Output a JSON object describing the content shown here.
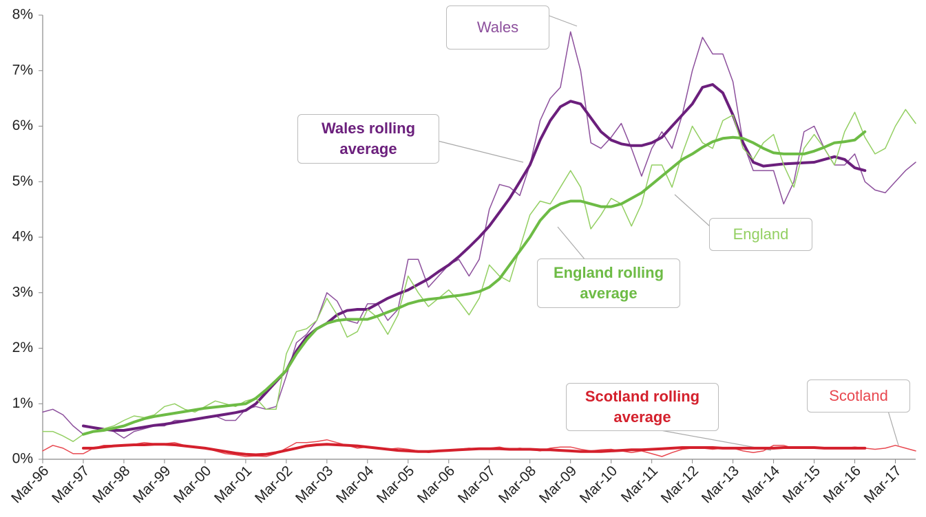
{
  "chart_data": {
    "type": "line",
    "categories": [
      "Mar-96",
      null,
      null,
      null,
      "Mar-97",
      null,
      null,
      null,
      "Mar-98",
      null,
      null,
      null,
      "Mar-99",
      null,
      null,
      null,
      "Mar-00",
      null,
      null,
      null,
      "Mar-01",
      null,
      null,
      null,
      "Mar-02",
      null,
      null,
      null,
      "Mar-03",
      null,
      null,
      null,
      "Mar-04",
      null,
      null,
      null,
      "Mar-05",
      null,
      null,
      null,
      "Mar-06",
      null,
      null,
      null,
      "Mar-07",
      null,
      null,
      null,
      "Mar-08",
      null,
      null,
      null,
      "Mar-09",
      null,
      null,
      null,
      "Mar-10",
      null,
      null,
      null,
      "Mar-11",
      null,
      null,
      null,
      "Mar-12",
      null,
      null,
      null,
      "Mar-13",
      null,
      null,
      null,
      "Mar-14",
      null,
      null,
      null,
      "Mar-15",
      null,
      null,
      null,
      "Mar-16",
      null,
      null,
      null,
      "Mar-17",
      null,
      null
    ],
    "ylim": [
      0,
      8
    ],
    "yticks": [
      {
        "value": 0,
        "label": "0%"
      },
      {
        "value": 1,
        "label": "1%"
      },
      {
        "value": 2,
        "label": "2%"
      },
      {
        "value": 3,
        "label": "3%"
      },
      {
        "value": 4,
        "label": "4%"
      },
      {
        "value": 5,
        "label": "5%"
      },
      {
        "value": 6,
        "label": "6%"
      },
      {
        "value": 7,
        "label": "7%"
      },
      {
        "value": 8,
        "label": "8%"
      }
    ],
    "grid": false,
    "series": [
      {
        "name": "Wales",
        "color": "#8c4f9c",
        "line_width": 1.5,
        "values": [
          0.85,
          0.9,
          0.8,
          0.6,
          0.45,
          0.5,
          0.55,
          0.5,
          0.38,
          0.5,
          0.55,
          0.6,
          0.6,
          0.7,
          0.7,
          0.72,
          0.75,
          0.78,
          0.7,
          0.7,
          0.9,
          0.95,
          0.9,
          0.95,
          1.5,
          2.1,
          2.25,
          2.5,
          3.0,
          2.85,
          2.5,
          2.45,
          2.8,
          2.8,
          2.5,
          2.7,
          3.6,
          3.6,
          3.1,
          3.3,
          3.5,
          3.6,
          3.3,
          3.6,
          4.5,
          4.95,
          4.9,
          4.75,
          5.3,
          6.1,
          6.5,
          6.7,
          7.7,
          7.0,
          5.7,
          5.6,
          5.8,
          6.05,
          5.6,
          5.1,
          5.6,
          5.9,
          5.6,
          6.2,
          7.0,
          7.6,
          7.3,
          7.3,
          6.8,
          5.7,
          5.2,
          5.2,
          5.2,
          4.6,
          5.0,
          5.9,
          6.0,
          5.6,
          5.3,
          5.3,
          5.5,
          5.0,
          4.85,
          4.8,
          5.0,
          5.2,
          5.35
        ]
      },
      {
        "name": "Wales rolling average",
        "color": "#6b1f7c",
        "line_width": 4,
        "values": [
          null,
          null,
          null,
          null,
          0.6,
          0.57,
          0.54,
          0.52,
          0.52,
          0.55,
          0.58,
          0.61,
          0.63,
          0.66,
          0.69,
          0.72,
          0.75,
          0.78,
          0.81,
          0.84,
          0.88,
          1.0,
          1.2,
          1.4,
          1.6,
          1.95,
          2.2,
          2.35,
          2.45,
          2.6,
          2.68,
          2.7,
          2.7,
          2.8,
          2.9,
          2.98,
          3.05,
          3.15,
          3.25,
          3.38,
          3.5,
          3.65,
          3.82,
          4.0,
          4.2,
          4.45,
          4.7,
          5.0,
          5.3,
          5.75,
          6.1,
          6.35,
          6.45,
          6.4,
          6.15,
          5.9,
          5.75,
          5.68,
          5.65,
          5.65,
          5.7,
          5.8,
          6.0,
          6.2,
          6.4,
          6.7,
          6.75,
          6.6,
          6.2,
          5.7,
          5.35,
          5.28,
          5.3,
          5.32,
          5.33,
          5.34,
          5.35,
          5.4,
          5.45,
          5.4,
          5.25,
          5.2,
          null,
          null,
          null,
          null,
          null
        ]
      },
      {
        "name": "England",
        "color": "#93cf62",
        "line_width": 1.5,
        "values": [
          0.5,
          0.5,
          0.42,
          0.32,
          0.45,
          0.5,
          0.55,
          0.6,
          0.7,
          0.78,
          0.75,
          0.8,
          0.95,
          1.0,
          0.9,
          0.85,
          0.95,
          1.05,
          1.0,
          0.95,
          1.05,
          1.1,
          0.9,
          0.9,
          1.9,
          2.3,
          2.35,
          2.5,
          2.9,
          2.6,
          2.2,
          2.3,
          2.7,
          2.55,
          2.25,
          2.6,
          3.3,
          3.0,
          2.75,
          2.9,
          3.05,
          2.85,
          2.6,
          2.9,
          3.5,
          3.3,
          3.2,
          3.8,
          4.4,
          4.65,
          4.6,
          4.9,
          5.2,
          4.9,
          4.15,
          4.4,
          4.7,
          4.6,
          4.2,
          4.6,
          5.3,
          5.3,
          4.9,
          5.5,
          6.0,
          5.7,
          5.6,
          6.1,
          6.2,
          5.6,
          5.4,
          5.7,
          5.85,
          5.3,
          4.9,
          5.6,
          5.85,
          5.6,
          5.3,
          5.9,
          6.25,
          5.8,
          5.5,
          5.6,
          6.0,
          6.3,
          6.05
        ]
      },
      {
        "name": "England rolling average",
        "color": "#6dbb45",
        "line_width": 4,
        "values": [
          null,
          null,
          null,
          null,
          0.45,
          0.5,
          0.52,
          0.56,
          0.6,
          0.67,
          0.73,
          0.77,
          0.8,
          0.83,
          0.86,
          0.89,
          0.92,
          0.94,
          0.96,
          0.98,
          1.0,
          1.1,
          1.25,
          1.42,
          1.6,
          1.9,
          2.15,
          2.35,
          2.45,
          2.5,
          2.52,
          2.52,
          2.52,
          2.58,
          2.65,
          2.72,
          2.8,
          2.85,
          2.88,
          2.9,
          2.93,
          2.95,
          2.98,
          3.02,
          3.1,
          3.25,
          3.5,
          3.75,
          4.0,
          4.3,
          4.5,
          4.6,
          4.65,
          4.65,
          4.6,
          4.55,
          4.55,
          4.6,
          4.7,
          4.8,
          4.95,
          5.1,
          5.25,
          5.4,
          5.5,
          5.62,
          5.72,
          5.78,
          5.8,
          5.78,
          5.7,
          5.6,
          5.52,
          5.5,
          5.5,
          5.5,
          5.55,
          5.62,
          5.7,
          5.72,
          5.75,
          5.9,
          null,
          null,
          null,
          null,
          null
        ]
      },
      {
        "name": "Scotland",
        "color": "#e8474f",
        "line_width": 1.5,
        "values": [
          0.15,
          0.25,
          0.2,
          0.1,
          0.1,
          0.2,
          0.25,
          0.25,
          0.25,
          0.27,
          0.3,
          0.28,
          0.28,
          0.3,
          0.25,
          0.22,
          0.2,
          0.15,
          0.1,
          0.08,
          0.05,
          0.06,
          0.05,
          0.1,
          0.2,
          0.3,
          0.3,
          0.32,
          0.35,
          0.3,
          0.25,
          0.2,
          0.22,
          0.2,
          0.18,
          0.2,
          0.18,
          0.15,
          0.12,
          0.14,
          0.15,
          0.18,
          0.2,
          0.18,
          0.2,
          0.22,
          0.18,
          0.2,
          0.18,
          0.15,
          0.2,
          0.22,
          0.22,
          0.18,
          0.15,
          0.17,
          0.18,
          0.15,
          0.12,
          0.15,
          0.1,
          0.05,
          0.12,
          0.18,
          0.2,
          0.2,
          0.18,
          0.2,
          0.2,
          0.15,
          0.12,
          0.15,
          0.25,
          0.25,
          0.2,
          0.2,
          0.22,
          0.2,
          0.2,
          0.2,
          0.22,
          0.2,
          0.18,
          0.2,
          0.25,
          0.2,
          0.15
        ]
      },
      {
        "name": "Scotland rolling average",
        "color": "#d4202c",
        "line_width": 4,
        "values": [
          null,
          null,
          null,
          null,
          0.2,
          0.2,
          0.22,
          0.24,
          0.25,
          0.26,
          0.26,
          0.27,
          0.27,
          0.26,
          0.24,
          0.22,
          0.2,
          0.17,
          0.14,
          0.11,
          0.09,
          0.08,
          0.09,
          0.12,
          0.16,
          0.2,
          0.24,
          0.26,
          0.27,
          0.26,
          0.25,
          0.24,
          0.22,
          0.2,
          0.18,
          0.16,
          0.15,
          0.14,
          0.14,
          0.15,
          0.16,
          0.17,
          0.18,
          0.19,
          0.19,
          0.19,
          0.18,
          0.18,
          0.18,
          0.17,
          0.17,
          0.16,
          0.15,
          0.14,
          0.14,
          0.14,
          0.15,
          0.16,
          0.17,
          0.17,
          0.18,
          0.19,
          0.2,
          0.21,
          0.21,
          0.21,
          0.21,
          0.2,
          0.2,
          0.2,
          0.2,
          0.2,
          0.2,
          0.21,
          0.21,
          0.21,
          0.21,
          0.2,
          0.2,
          0.2,
          0.2,
          0.2,
          null,
          null,
          null,
          null,
          null
        ]
      }
    ]
  }
}
